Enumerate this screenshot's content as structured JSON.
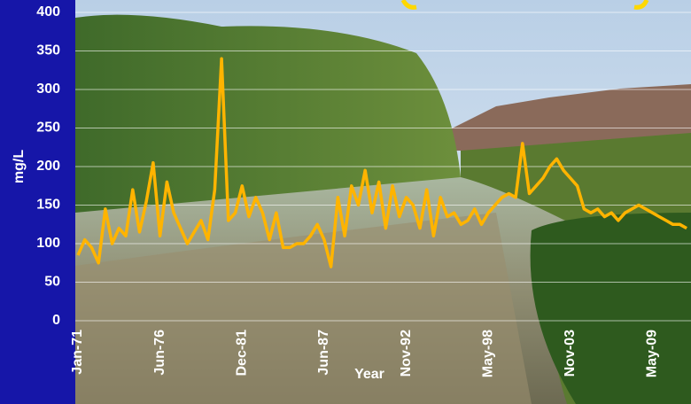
{
  "chart_data": {
    "type": "line",
    "y_label": "mg/L",
    "x_label": "Year",
    "categories": [
      "Jan-71",
      null,
      null,
      null,
      null,
      null,
      null,
      null,
      null,
      null,
      null,
      null,
      "Jun-76",
      null,
      null,
      null,
      null,
      null,
      null,
      null,
      null,
      null,
      null,
      null,
      "Dec-81",
      null,
      null,
      null,
      null,
      null,
      null,
      null,
      null,
      null,
      null,
      null,
      "Jun-87",
      null,
      null,
      null,
      null,
      null,
      null,
      null,
      null,
      null,
      null,
      null,
      "Nov-92",
      null,
      null,
      null,
      null,
      null,
      null,
      null,
      null,
      null,
      null,
      null,
      "May-98",
      null,
      null,
      null,
      null,
      null,
      null,
      null,
      null,
      null,
      null,
      null,
      "Nov-03",
      null,
      null,
      null,
      null,
      null,
      null,
      null,
      null,
      null,
      null,
      null,
      "May-09",
      null,
      null,
      null,
      null,
      null
    ],
    "series": [
      {
        "color": "#ffb400",
        "values": [
          85,
          105,
          95,
          75,
          145,
          100,
          120,
          110,
          170,
          115,
          155,
          205,
          110,
          180,
          140,
          120,
          100,
          115,
          130,
          105,
          170,
          340,
          130,
          140,
          175,
          135,
          160,
          140,
          105,
          140,
          95,
          95,
          100,
          100,
          110,
          125,
          105,
          70,
          160,
          110,
          175,
          150,
          195,
          140,
          180,
          120,
          175,
          135,
          160,
          150,
          120,
          170,
          110,
          160,
          135,
          140,
          125,
          130,
          145,
          125,
          140,
          150,
          160,
          165,
          160,
          230,
          165,
          175,
          185,
          200,
          210,
          195,
          185,
          175,
          145,
          140,
          145,
          135,
          140,
          130,
          140,
          145,
          150,
          145,
          140,
          135,
          130,
          125,
          125,
          120
        ]
      }
    ],
    "ylim": [
      0,
      400
    ],
    "yticks": [
      0,
      50,
      100,
      150,
      200,
      250,
      300,
      350,
      400
    ],
    "grid": true
  }
}
